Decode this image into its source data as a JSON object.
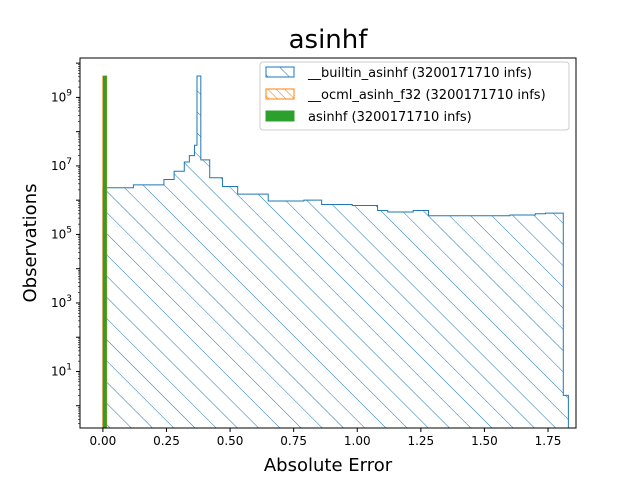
{
  "chart_data": {
    "type": "histogram",
    "title": "asinhf",
    "xlabel": "Absolute Error",
    "ylabel": "Observations",
    "xlim": [
      -0.09,
      1.86
    ],
    "ylim_log10": [
      -0.65,
      10.15
    ],
    "yscale": "log",
    "x_ticks": [
      0.0,
      0.25,
      0.5,
      0.75,
      1.0,
      1.25,
      1.5,
      1.75
    ],
    "x_tick_labels": [
      "0.00",
      "0.25",
      "0.50",
      "0.75",
      "1.00",
      "1.25",
      "1.50",
      "1.75"
    ],
    "y_ticks_exponents": [
      1,
      3,
      5,
      7,
      9
    ],
    "y_tick_base": "10",
    "legend_position": "top-right",
    "grid": false,
    "series": [
      {
        "name": "__builtin_asinhf (3200171710 infs)",
        "style": "step-hatched",
        "color": "#1f77b4",
        "steps": [
          {
            "x": 0.0,
            "y": 2300000.0
          },
          {
            "x": 0.12,
            "y": 2800000.0
          },
          {
            "x": 0.24,
            "y": 4000000.0
          },
          {
            "x": 0.28,
            "y": 7000000.0
          },
          {
            "x": 0.32,
            "y": 13000000.0
          },
          {
            "x": 0.34,
            "y": 20000000.0
          },
          {
            "x": 0.36,
            "y": 40000000.0
          },
          {
            "x": 0.37,
            "y": 4200000000.0
          },
          {
            "x": 0.385,
            "y": 15000000.0
          },
          {
            "x": 0.42,
            "y": 4500000.0
          },
          {
            "x": 0.47,
            "y": 2500000.0
          },
          {
            "x": 0.53,
            "y": 1500000.0
          },
          {
            "x": 0.65,
            "y": 950000.0
          },
          {
            "x": 0.79,
            "y": 1000000.0
          },
          {
            "x": 0.86,
            "y": 750000.0
          },
          {
            "x": 0.98,
            "y": 700000.0
          },
          {
            "x": 1.08,
            "y": 500000.0
          },
          {
            "x": 1.12,
            "y": 450000.0
          },
          {
            "x": 1.22,
            "y": 500000.0
          },
          {
            "x": 1.28,
            "y": 350000.0
          },
          {
            "x": 1.6,
            "y": 370000.0
          },
          {
            "x": 1.7,
            "y": 400000.0
          },
          {
            "x": 1.74,
            "y": 420000.0
          },
          {
            "x": 1.81,
            "y": 2.0
          }
        ],
        "x_end": 1.83
      },
      {
        "name": "__ocml_asinh_f32 (3200171710 infs)",
        "style": "step-hatched",
        "color": "#ff7f0e",
        "steps": [
          {
            "x": 0.0,
            "y": 4200000000.0
          }
        ],
        "x_end": 0.015
      },
      {
        "name": "asinhf (3200171710 infs)",
        "style": "bar-filled",
        "color": "#2ca02c",
        "steps": [
          {
            "x": 0.0,
            "y": 4200000000.0
          }
        ],
        "x_end": 0.015
      }
    ]
  }
}
